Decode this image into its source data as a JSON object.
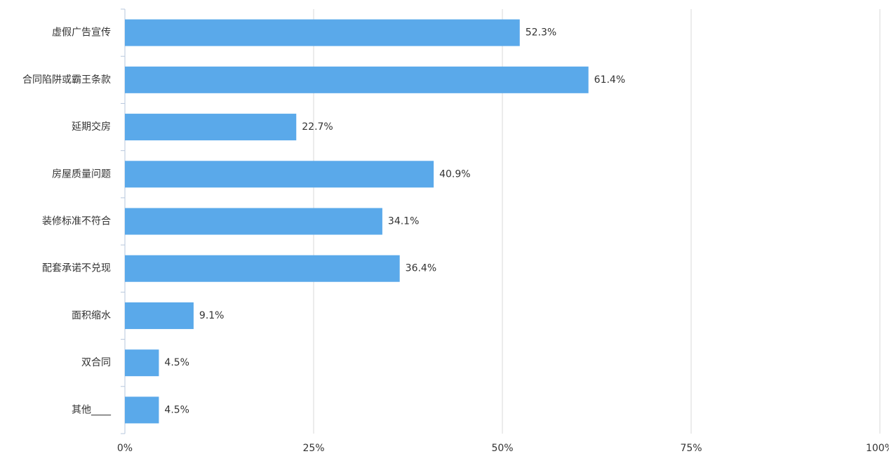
{
  "chart_data": {
    "type": "bar",
    "orientation": "horizontal",
    "categories": [
      "虚假广告宣传",
      "合同陷阱或霸王条款",
      "延期交房",
      "房屋质量问题",
      "装修标准不符合",
      "配套承诺不兑现",
      "面积缩水",
      "双合同",
      "其他____"
    ],
    "values": [
      52.3,
      61.4,
      22.7,
      40.9,
      34.1,
      36.4,
      9.1,
      4.5,
      4.5
    ],
    "value_labels": [
      "52.3%",
      "61.4%",
      "22.7%",
      "40.9%",
      "34.1%",
      "36.4%",
      "9.1%",
      "4.5%",
      "4.5%"
    ],
    "color": "#5aa9ea",
    "xlim": [
      0,
      100
    ],
    "xticks": [
      {
        "value": 0,
        "label": "0%"
      },
      {
        "value": 25,
        "label": "25%"
      },
      {
        "value": 50,
        "label": "50%"
      },
      {
        "value": 75,
        "label": "75%"
      },
      {
        "value": 100,
        "label": "100%"
      }
    ],
    "grid": true
  }
}
